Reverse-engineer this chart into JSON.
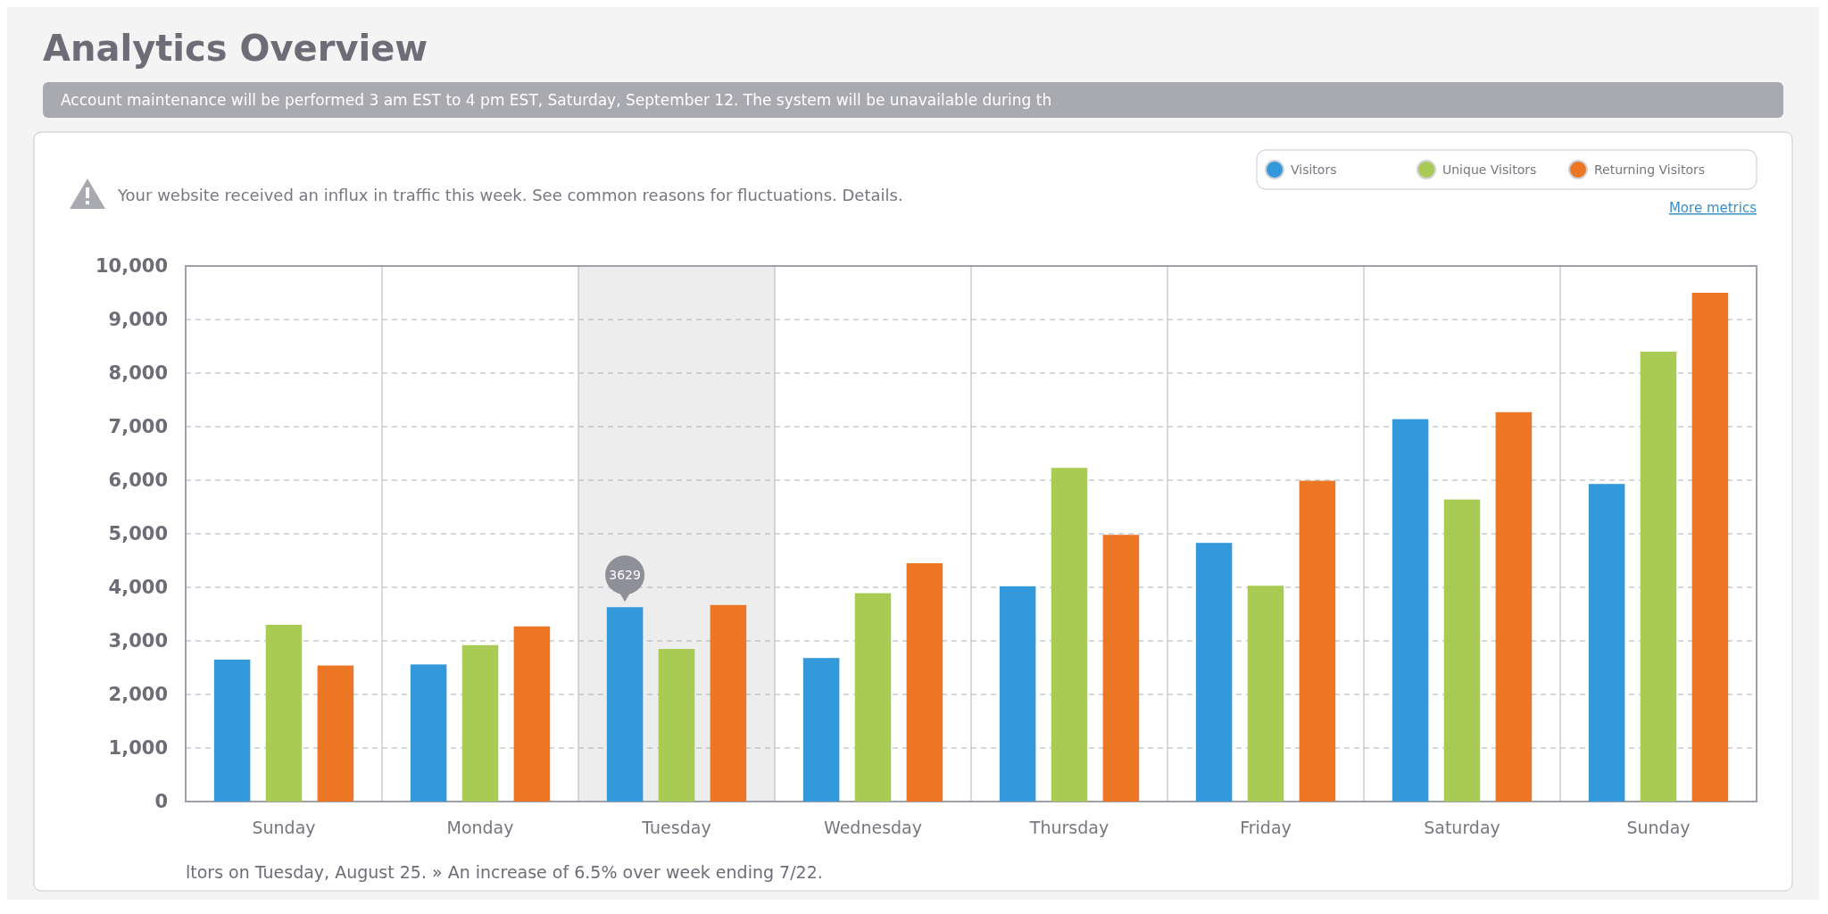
{
  "chart_data": {
    "type": "bar",
    "title": "Analytics Overview",
    "annotations": [
      "Account maintenance will be performed 3 am EST to 4 pm EST, Saturday, September 12. The system will be unavailable during th",
      "Your website received an influx in traffic this week. See common reasons for fluctuations. Details.",
      "More metrics",
      "ltors on Tuesday, August 25. » An increase of 6.5% over week ending 7/22."
    ],
    "categories": [
      "Sunday",
      "Monday",
      "Tuesday",
      "Wednesday",
      "Thursday",
      "Friday",
      "Saturday",
      "Sunday"
    ],
    "series": [
      {
        "name": "Visitors",
        "color": "#3399db",
        "values": [
          2650,
          2560,
          3629,
          2680,
          4020,
          4830,
          7140,
          5930
        ],
        "value_labels": [
          null,
          null,
          "3629",
          null,
          null,
          null,
          null,
          null
        ]
      },
      {
        "name": "Unique Visitors",
        "color": "#a9cb54",
        "values": [
          3300,
          2920,
          2850,
          3890,
          6230,
          4030,
          5640,
          8400
        ]
      },
      {
        "name": "Returning Visitors",
        "color": "#ec7623",
        "values": [
          2540,
          3270,
          3670,
          4450,
          4980,
          5990,
          7270,
          9500
        ]
      }
    ],
    "ylim": [
      0,
      10000
    ],
    "yticks": [
      0,
      {
        "value": 1000,
        "label": "1,000"
      },
      {
        "value": 2000,
        "label": "2,000"
      },
      {
        "value": 3000,
        "label": "3,000"
      },
      {
        "value": 4000,
        "label": "4,000"
      },
      {
        "value": 5000,
        "label": "5,000"
      },
      {
        "value": 6000,
        "label": "6,000"
      },
      {
        "value": 7000,
        "label": "7,000"
      },
      {
        "value": 8000,
        "label": "8,000"
      },
      {
        "value": 9000,
        "label": "9,000"
      },
      {
        "value": 10000,
        "label": "10,000"
      }
    ],
    "grid": true,
    "legend": "top right",
    "bands": [
      {
        "axis": "x",
        "from": "Tuesday",
        "to": "Tuesday",
        "color": "#ededed"
      }
    ]
  }
}
